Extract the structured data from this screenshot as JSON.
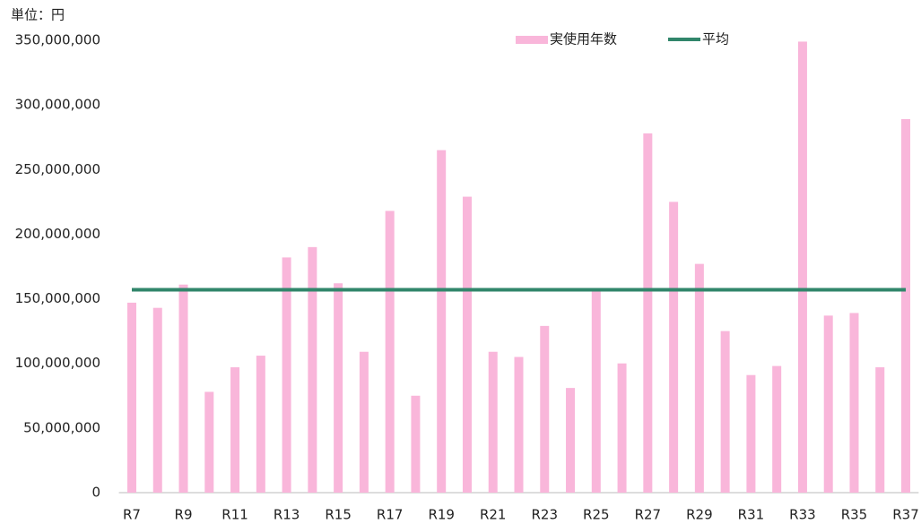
{
  "chart_data": {
    "type": "bar",
    "unit_label": "単位：円",
    "categories": [
      "R7",
      null,
      "R9",
      null,
      "R11",
      null,
      "R13",
      null,
      "R15",
      null,
      "R17",
      null,
      "R19",
      null,
      "R21",
      null,
      "R23",
      null,
      "R25",
      null,
      "R27",
      null,
      "R29",
      null,
      "R31",
      null,
      "R33",
      null,
      "R35",
      null,
      "R37"
    ],
    "series": [
      {
        "name": "実使用年数",
        "type": "bar",
        "color": "#f9b6da",
        "values": [
          147000000,
          143000000,
          161000000,
          78000000,
          97000000,
          106000000,
          182000000,
          190000000,
          162000000,
          109000000,
          218000000,
          75000000,
          265000000,
          229000000,
          109000000,
          105000000,
          129000000,
          81000000,
          157000000,
          100000000,
          278000000,
          225000000,
          177000000,
          125000000,
          91000000,
          98000000,
          349000000,
          137000000,
          139000000,
          97000000,
          289000000
        ]
      },
      {
        "name": "平均",
        "type": "line",
        "color": "#31866b",
        "values": [
          157000000,
          157000000,
          157000000,
          157000000,
          157000000,
          157000000,
          157000000,
          157000000,
          157000000,
          157000000,
          157000000,
          157000000,
          157000000,
          157000000,
          157000000,
          157000000,
          157000000,
          157000000,
          157000000,
          157000000,
          157000000,
          157000000,
          157000000,
          157000000,
          157000000,
          157000000,
          157000000,
          157000000,
          157000000,
          157000000,
          157000000
        ]
      }
    ],
    "ylim": [
      0,
      350000000
    ],
    "yticks": [
      0,
      {
        "value": 50000000,
        "label": "50,000,000"
      },
      {
        "value": 100000000,
        "label": "100,000,000"
      },
      {
        "value": 150000000,
        "label": "150,000,000"
      },
      {
        "value": 200000000,
        "label": "200,000,000"
      },
      {
        "value": 250000000,
        "label": "250,000,000"
      },
      {
        "value": 300000000,
        "label": "300,000,000"
      },
      {
        "value": 350000000,
        "label": "350,000,000"
      }
    ],
    "grid": false,
    "legend": "top"
  }
}
